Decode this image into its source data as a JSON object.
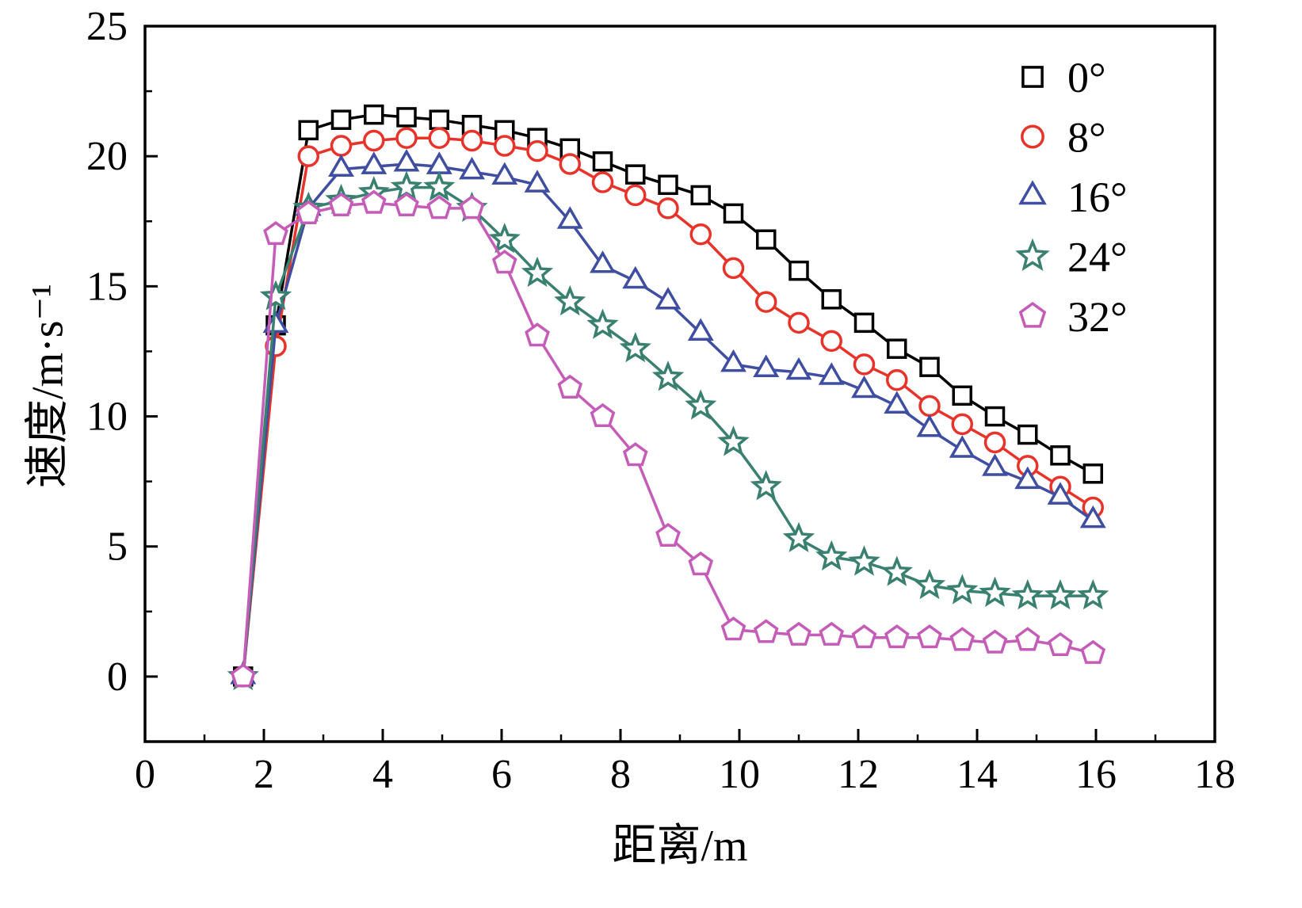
{
  "figure": {
    "background": "#ffffff",
    "axis_color": "#000000"
  },
  "chart_data": {
    "type": "line",
    "title": "",
    "xlabel": "距离/m",
    "ylabel": "速度/m·s⁻¹",
    "xlim": [
      0,
      18
    ],
    "ylim": [
      -2.5,
      25
    ],
    "xticks": [
      0,
      2,
      4,
      6,
      8,
      10,
      12,
      14,
      16,
      18
    ],
    "yticks": [
      0,
      5,
      10,
      15,
      20,
      25
    ],
    "x_minor_ticks": [
      1,
      3,
      5,
      7,
      9,
      11,
      13,
      15,
      17
    ],
    "y_minor_ticks": [
      2.5,
      7.5,
      12.5,
      17.5,
      22.5
    ],
    "grid": false,
    "legend_position": "top-right-inside",
    "x": [
      1.65,
      2.2,
      2.75,
      3.3,
      3.85,
      4.4,
      4.95,
      5.5,
      6.05,
      6.6,
      7.15,
      7.7,
      8.25,
      8.8,
      9.35,
      9.9,
      10.45,
      11.0,
      11.55,
      12.1,
      12.65,
      13.2,
      13.75,
      14.3,
      14.85,
      15.4,
      15.95
    ],
    "series": [
      {
        "name": "0°",
        "marker": "square",
        "color": "#000000",
        "values": [
          0,
          13.5,
          21.0,
          21.4,
          21.6,
          21.5,
          21.4,
          21.2,
          21.0,
          20.7,
          20.3,
          19.8,
          19.3,
          18.9,
          18.5,
          17.8,
          16.8,
          15.6,
          14.5,
          13.6,
          12.6,
          11.9,
          10.8,
          10.0,
          9.3,
          8.5,
          7.8
        ]
      },
      {
        "name": "8°",
        "marker": "circle",
        "color": "#e8332a",
        "values": [
          0,
          12.7,
          20.0,
          20.4,
          20.6,
          20.7,
          20.7,
          20.6,
          20.4,
          20.2,
          19.7,
          19.0,
          18.5,
          18.0,
          17.0,
          15.7,
          14.4,
          13.6,
          12.9,
          12.0,
          11.4,
          10.4,
          9.7,
          9.0,
          8.1,
          7.3,
          6.5
        ]
      },
      {
        "name": "16°",
        "marker": "triangle",
        "color": "#3f4ea1",
        "values": [
          0,
          13.5,
          18.0,
          19.5,
          19.6,
          19.7,
          19.6,
          19.4,
          19.2,
          18.9,
          17.5,
          15.8,
          15.2,
          14.4,
          13.2,
          12.0,
          11.8,
          11.7,
          11.5,
          11.0,
          10.4,
          9.5,
          8.7,
          8.0,
          7.5,
          6.9,
          6.0
        ]
      },
      {
        "name": "24°",
        "marker": "star",
        "color": "#3a8070",
        "values": [
          0,
          14.6,
          18.0,
          18.3,
          18.6,
          18.8,
          18.8,
          18.0,
          16.8,
          15.5,
          14.4,
          13.5,
          12.6,
          11.5,
          10.4,
          9.0,
          7.3,
          5.3,
          4.6,
          4.4,
          4.0,
          3.5,
          3.3,
          3.2,
          3.1,
          3.1,
          3.1
        ]
      },
      {
        "name": "32°",
        "marker": "pentagon",
        "color": "#c55cb7",
        "values": [
          0,
          17.0,
          17.8,
          18.1,
          18.2,
          18.1,
          18.0,
          18.0,
          15.9,
          13.1,
          11.1,
          10.0,
          8.5,
          5.4,
          4.3,
          1.8,
          1.7,
          1.6,
          1.6,
          1.5,
          1.5,
          1.5,
          1.4,
          1.3,
          1.4,
          1.2,
          0.9
        ]
      }
    ]
  }
}
